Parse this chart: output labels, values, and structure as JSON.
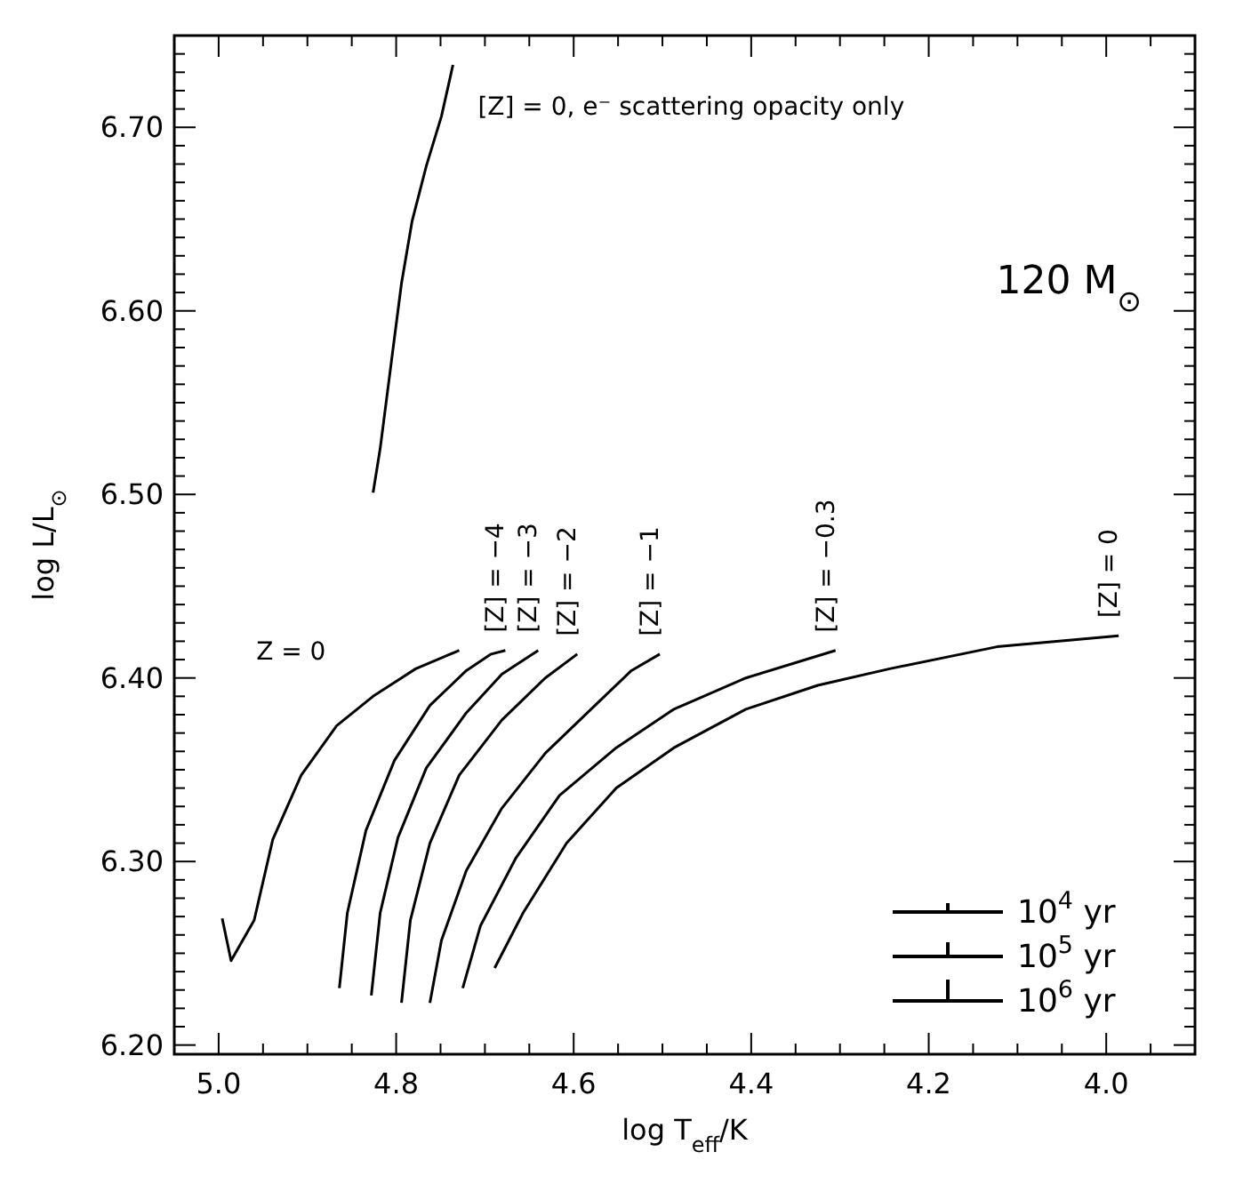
{
  "chart_data": {
    "type": "line",
    "xlabel": "log T$_{eff}$/K",
    "ylabel": "log L/L$_{⊙}$",
    "xlim": [
      5.05,
      3.9
    ],
    "ylim": [
      6.195,
      6.75
    ],
    "xticks": [
      {
        "value": 5.0,
        "label": "5.0"
      },
      {
        "value": 4.95,
        "label": null
      },
      {
        "value": 4.9,
        "label": null
      },
      {
        "value": 4.85,
        "label": null
      },
      {
        "value": 4.8,
        "label": "4.8"
      },
      {
        "value": 4.75,
        "label": null
      },
      {
        "value": 4.7,
        "label": null
      },
      {
        "value": 4.65,
        "label": null
      },
      {
        "value": 4.6,
        "label": "4.6"
      },
      {
        "value": 4.55,
        "label": null
      },
      {
        "value": 4.5,
        "label": null
      },
      {
        "value": 4.45,
        "label": null
      },
      {
        "value": 4.4,
        "label": "4.4"
      },
      {
        "value": 4.35,
        "label": null
      },
      {
        "value": 4.3,
        "label": null
      },
      {
        "value": 4.25,
        "label": null
      },
      {
        "value": 4.2,
        "label": "4.2"
      },
      {
        "value": 4.15,
        "label": null
      },
      {
        "value": 4.1,
        "label": null
      },
      {
        "value": 4.05,
        "label": null
      },
      {
        "value": 4.0,
        "label": "4.0"
      },
      {
        "value": 3.95,
        "label": null
      }
    ],
    "yticks": [
      {
        "value": 6.2,
        "label": "6.20"
      },
      {
        "value": 6.21,
        "label": null
      },
      {
        "value": 6.22,
        "label": null
      },
      {
        "value": 6.23,
        "label": null
      },
      {
        "value": 6.24,
        "label": null
      },
      {
        "value": 6.25,
        "label": null
      },
      {
        "value": 6.26,
        "label": null
      },
      {
        "value": 6.27,
        "label": null
      },
      {
        "value": 6.28,
        "label": null
      },
      {
        "value": 6.29,
        "label": null
      },
      {
        "value": 6.3,
        "label": "6.30"
      },
      {
        "value": 6.31,
        "label": null
      },
      {
        "value": 6.32,
        "label": null
      },
      {
        "value": 6.33,
        "label": null
      },
      {
        "value": 6.34,
        "label": null
      },
      {
        "value": 6.35,
        "label": null
      },
      {
        "value": 6.36,
        "label": null
      },
      {
        "value": 6.37,
        "label": null
      },
      {
        "value": 6.38,
        "label": null
      },
      {
        "value": 6.39,
        "label": null
      },
      {
        "value": 6.4,
        "label": "6.40"
      },
      {
        "value": 6.41,
        "label": null
      },
      {
        "value": 6.42,
        "label": null
      },
      {
        "value": 6.43,
        "label": null
      },
      {
        "value": 6.44,
        "label": null
      },
      {
        "value": 6.45,
        "label": null
      },
      {
        "value": 6.46,
        "label": null
      },
      {
        "value": 6.47,
        "label": null
      },
      {
        "value": 6.48,
        "label": null
      },
      {
        "value": 6.49,
        "label": null
      },
      {
        "value": 6.5,
        "label": "6.50"
      },
      {
        "value": 6.51,
        "label": null
      },
      {
        "value": 6.52,
        "label": null
      },
      {
        "value": 6.53,
        "label": null
      },
      {
        "value": 6.54,
        "label": null
      },
      {
        "value": 6.55,
        "label": null
      },
      {
        "value": 6.56,
        "label": null
      },
      {
        "value": 6.57,
        "label": null
      },
      {
        "value": 6.58,
        "label": null
      },
      {
        "value": 6.59,
        "label": null
      },
      {
        "value": 6.6,
        "label": "6.60"
      },
      {
        "value": 6.61,
        "label": null
      },
      {
        "value": 6.62,
        "label": null
      },
      {
        "value": 6.63,
        "label": null
      },
      {
        "value": 6.64,
        "label": null
      },
      {
        "value": 6.65,
        "label": null
      },
      {
        "value": 6.66,
        "label": null
      },
      {
        "value": 6.67,
        "label": null
      },
      {
        "value": 6.68,
        "label": null
      },
      {
        "value": 6.69,
        "label": null
      },
      {
        "value": 6.7,
        "label": "6.70"
      },
      {
        "value": 6.71,
        "label": null
      },
      {
        "value": 6.72,
        "label": null
      },
      {
        "value": 6.73,
        "label": null
      },
      {
        "value": 6.74,
        "label": null
      }
    ],
    "grid": false,
    "line_style": "solid",
    "series": [
      {
        "name": "[Z] = 0, e⁻ scattering opacity only",
        "color": "#000000",
        "x": [
          4.826,
          4.818,
          4.806,
          4.794,
          4.782,
          4.766,
          4.749,
          4.736
        ],
        "values": [
          6.501,
          6.525,
          6.57,
          6.615,
          6.649,
          6.679,
          6.706,
          6.734
        ]
      },
      {
        "name": "Z = 0",
        "color": "#000000",
        "x": [
          4.996,
          4.986,
          4.96,
          4.939,
          4.907,
          4.867,
          4.826,
          4.778,
          4.729
        ],
        "values": [
          6.269,
          6.246,
          6.268,
          6.312,
          6.347,
          6.374,
          6.39,
          6.405,
          6.415
        ]
      },
      {
        "name": "[Z] = −4",
        "color": "#000000",
        "x": [
          4.864,
          4.855,
          4.834,
          4.802,
          4.762,
          4.721,
          4.693,
          4.677
        ],
        "values": [
          6.231,
          6.272,
          6.317,
          6.355,
          6.385,
          6.404,
          6.413,
          6.415
        ]
      },
      {
        "name": "[Z] = −3",
        "color": "#000000",
        "x": [
          4.828,
          4.818,
          4.798,
          4.766,
          4.721,
          4.681,
          4.64
        ],
        "values": [
          6.227,
          6.272,
          6.313,
          6.351,
          6.381,
          6.402,
          6.415
        ]
      },
      {
        "name": "[Z] = −2",
        "color": "#000000",
        "x": [
          4.794,
          4.784,
          4.762,
          4.729,
          4.681,
          4.632,
          4.596
        ],
        "values": [
          6.223,
          6.268,
          6.31,
          6.347,
          6.377,
          6.4,
          6.413
        ]
      },
      {
        "name": "[Z] = −1",
        "color": "#000000",
        "x": [
          4.762,
          4.749,
          4.721,
          4.681,
          4.632,
          4.576,
          4.535,
          4.503
        ],
        "values": [
          6.223,
          6.257,
          6.295,
          6.329,
          6.359,
          6.385,
          6.404,
          6.413
        ]
      },
      {
        "name": "[Z] = −0.3",
        "color": "#000000",
        "x": [
          4.725,
          4.705,
          4.665,
          4.616,
          4.552,
          4.487,
          4.406,
          4.305
        ],
        "values": [
          6.231,
          6.265,
          6.302,
          6.336,
          6.362,
          6.383,
          6.4,
          6.415
        ]
      },
      {
        "name": "[Z] = 0",
        "color": "#000000",
        "x": [
          4.689,
          4.657,
          4.608,
          4.552,
          4.487,
          4.406,
          4.325,
          4.244,
          4.123,
          3.986
        ],
        "values": [
          6.242,
          6.272,
          6.31,
          6.34,
          6.362,
          6.383,
          6.396,
          6.405,
          6.417,
          6.423
        ]
      }
    ],
    "annotations": [
      "120 M$_{⊙}$",
      "10$^{4}$ yr",
      "10$^{5}$ yr",
      "10$^{6}$ yr"
    ]
  }
}
